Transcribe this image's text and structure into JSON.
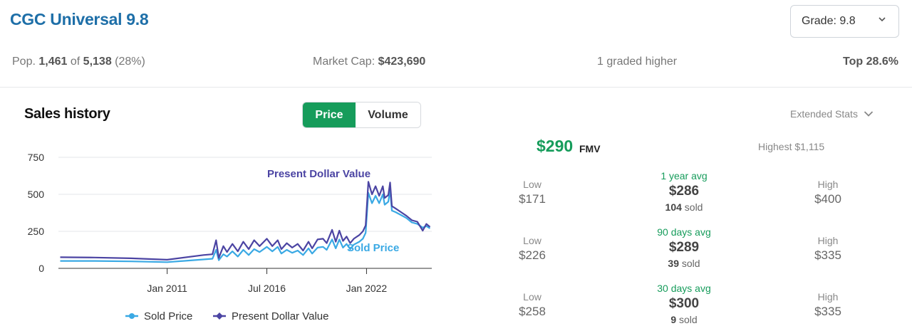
{
  "header": {
    "title": "CGC Universal 9.8",
    "grade_select": "Grade: 9.8"
  },
  "stats": {
    "pop_prefix": "Pop.",
    "pop_count": "1,461",
    "pop_of": "of",
    "pop_total": "5,138",
    "pop_pct": "(28%)",
    "market_cap_label": "Market Cap:",
    "market_cap_value": "$423,690",
    "graded_higher": "1 graded higher",
    "top": "Top 28.6%"
  },
  "sales": {
    "title": "Sales history",
    "toggle_price": "Price",
    "toggle_volume": "Volume",
    "extended_stats": "Extended Stats"
  },
  "fmv": {
    "value": "$290",
    "label": "FMV",
    "highest": "Highest $1,115"
  },
  "stat_rows": [
    {
      "low_label": "Low",
      "low": "$171",
      "avg_label": "1 year avg",
      "avg": "$286",
      "sold_count": "104",
      "sold_suffix": "sold",
      "high_label": "High",
      "high": "$400"
    },
    {
      "low_label": "Low",
      "low": "$226",
      "avg_label": "90 days avg",
      "avg": "$289",
      "sold_count": "39",
      "sold_suffix": "sold",
      "high_label": "High",
      "high": "$335"
    },
    {
      "low_label": "Low",
      "low": "$258",
      "avg_label": "30 days avg",
      "avg": "$300",
      "sold_count": "9",
      "sold_suffix": "sold",
      "high_label": "High",
      "high": "$335"
    }
  ],
  "colors": {
    "sold": "#3aa9e4",
    "present": "#4b44a3",
    "accent": "#169c5b",
    "title": "#1e6fa8"
  },
  "chart_data": {
    "type": "line",
    "x_tick_labels": [
      "Jan 2011",
      "Jul 2016",
      "Jan 2022"
    ],
    "x_tick_values": [
      2011.0,
      2016.5,
      2022.0
    ],
    "xlim": [
      2005.0,
      2025.6
    ],
    "ylim": [
      0,
      750
    ],
    "y_ticks": [
      0,
      250,
      500,
      750
    ],
    "grid": true,
    "legend_position": "bottom",
    "series": [
      {
        "name": "Sold Price",
        "color": "#3aa9e4",
        "annotation": "Sold Price",
        "points": [
          [
            2005.1,
            50
          ],
          [
            2007.0,
            50
          ],
          [
            2009.0,
            47
          ],
          [
            2011.0,
            42
          ],
          [
            2013.0,
            60
          ],
          [
            2013.5,
            65
          ],
          [
            2013.7,
            125
          ],
          [
            2013.85,
            55
          ],
          [
            2014.1,
            95
          ],
          [
            2014.3,
            80
          ],
          [
            2014.6,
            115
          ],
          [
            2014.9,
            80
          ],
          [
            2015.2,
            125
          ],
          [
            2015.5,
            90
          ],
          [
            2015.8,
            130
          ],
          [
            2016.1,
            110
          ],
          [
            2016.5,
            145
          ],
          [
            2016.8,
            115
          ],
          [
            2017.1,
            145
          ],
          [
            2017.3,
            100
          ],
          [
            2017.6,
            125
          ],
          [
            2017.9,
            105
          ],
          [
            2018.2,
            120
          ],
          [
            2018.5,
            90
          ],
          [
            2018.8,
            135
          ],
          [
            2019.0,
            100
          ],
          [
            2019.3,
            140
          ],
          [
            2019.6,
            145
          ],
          [
            2019.8,
            125
          ],
          [
            2020.1,
            195
          ],
          [
            2020.3,
            135
          ],
          [
            2020.5,
            195
          ],
          [
            2020.7,
            140
          ],
          [
            2020.9,
            165
          ],
          [
            2021.1,
            130
          ],
          [
            2021.3,
            160
          ],
          [
            2021.6,
            180
          ],
          [
            2021.8,
            200
          ],
          [
            2021.95,
            240
          ],
          [
            2022.1,
            510
          ],
          [
            2022.3,
            440
          ],
          [
            2022.5,
            490
          ],
          [
            2022.7,
            440
          ],
          [
            2022.9,
            500
          ],
          [
            2023.0,
            430
          ],
          [
            2023.2,
            450
          ],
          [
            2023.3,
            530
          ],
          [
            2023.4,
            390
          ],
          [
            2023.6,
            380
          ],
          [
            2023.9,
            360
          ],
          [
            2024.2,
            340
          ],
          [
            2024.5,
            310
          ],
          [
            2024.8,
            300
          ],
          [
            2025.1,
            275
          ],
          [
            2025.3,
            285
          ],
          [
            2025.5,
            270
          ]
        ]
      },
      {
        "name": "Present Dollar Value",
        "color": "#4b44a3",
        "annotation": "Present Dollar Value",
        "points": [
          [
            2005.1,
            75
          ],
          [
            2007.0,
            73
          ],
          [
            2009.0,
            68
          ],
          [
            2011.0,
            58
          ],
          [
            2013.0,
            90
          ],
          [
            2013.5,
            95
          ],
          [
            2013.7,
            190
          ],
          [
            2013.85,
            70
          ],
          [
            2014.1,
            150
          ],
          [
            2014.3,
            110
          ],
          [
            2014.6,
            165
          ],
          [
            2014.9,
            115
          ],
          [
            2015.2,
            180
          ],
          [
            2015.5,
            130
          ],
          [
            2015.8,
            190
          ],
          [
            2016.1,
            150
          ],
          [
            2016.5,
            200
          ],
          [
            2016.8,
            150
          ],
          [
            2017.1,
            190
          ],
          [
            2017.3,
            130
          ],
          [
            2017.6,
            170
          ],
          [
            2017.9,
            140
          ],
          [
            2018.2,
            165
          ],
          [
            2018.5,
            120
          ],
          [
            2018.8,
            180
          ],
          [
            2019.0,
            135
          ],
          [
            2019.3,
            195
          ],
          [
            2019.6,
            200
          ],
          [
            2019.8,
            170
          ],
          [
            2020.1,
            260
          ],
          [
            2020.3,
            180
          ],
          [
            2020.5,
            255
          ],
          [
            2020.7,
            185
          ],
          [
            2020.9,
            215
          ],
          [
            2021.1,
            170
          ],
          [
            2021.3,
            200
          ],
          [
            2021.6,
            225
          ],
          [
            2021.8,
            250
          ],
          [
            2021.95,
            290
          ],
          [
            2022.1,
            585
          ],
          [
            2022.3,
            500
          ],
          [
            2022.5,
            555
          ],
          [
            2022.7,
            490
          ],
          [
            2022.9,
            555
          ],
          [
            2023.0,
            475
          ],
          [
            2023.2,
            495
          ],
          [
            2023.3,
            580
          ],
          [
            2023.4,
            420
          ],
          [
            2023.6,
            405
          ],
          [
            2023.9,
            380
          ],
          [
            2024.2,
            355
          ],
          [
            2024.5,
            325
          ],
          [
            2024.8,
            315
          ],
          [
            2025.1,
            255
          ],
          [
            2025.3,
            300
          ],
          [
            2025.5,
            280
          ]
        ]
      }
    ]
  }
}
